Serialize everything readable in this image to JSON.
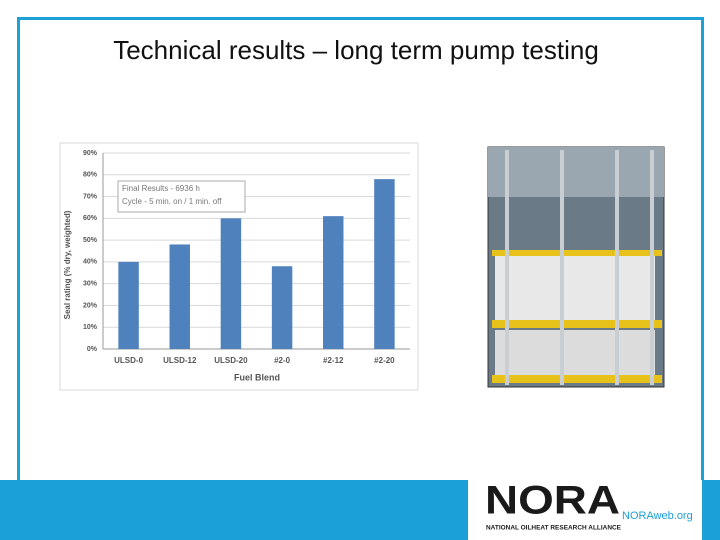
{
  "slide": {
    "title": "Technical results – long term pump testing"
  },
  "chart_data": {
    "type": "bar",
    "categories": [
      "ULSD-0",
      "ULSD-12",
      "ULSD-20",
      "#2-0",
      "#2-12",
      "#2-20"
    ],
    "values": [
      40,
      48,
      60,
      38,
      61,
      78
    ],
    "color": "#4f81bd",
    "y_label": "Seal rating (% dry, weighted)",
    "x_label": "Fuel Blend",
    "annotations": [
      "Final Results  -  6936 h",
      "Cycle - 5 min. on / 1 min. off"
    ],
    "ylim": [
      0,
      90
    ],
    "yticks": [
      {
        "value": 0,
        "label": "0%"
      },
      {
        "value": 10,
        "label": "10%"
      },
      {
        "value": 20,
        "label": "20%"
      },
      {
        "value": 30,
        "label": "30%"
      },
      {
        "value": 40,
        "label": "40%"
      },
      {
        "value": 50,
        "label": "50%"
      },
      {
        "value": 60,
        "label": "60%"
      },
      {
        "value": 70,
        "label": "70%"
      },
      {
        "value": 80,
        "label": "80%"
      },
      {
        "value": 90,
        "label": "90%"
      }
    ],
    "grid": true
  },
  "footer": {
    "logo": "NORA",
    "site": "NORAweb.org",
    "org": "NATIONAL OILHEAT RESEARCH ALLIANCE"
  }
}
